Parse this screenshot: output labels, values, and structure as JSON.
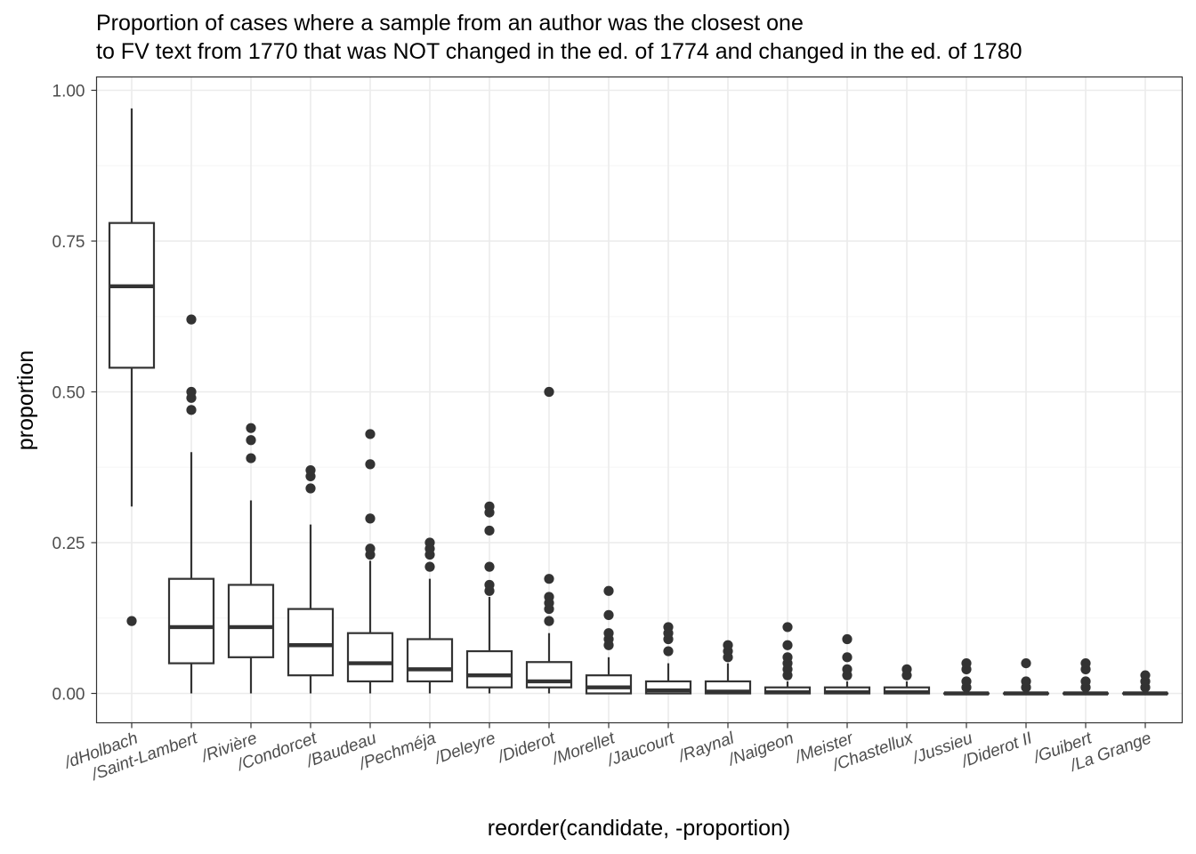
{
  "chart_data": {
    "type": "box",
    "title": [
      "Proportion of cases where a sample from an author was the closest one",
      "to FV text from 1770 that was NOT changed in the ed. of 1774 and changed in the ed. of 1780"
    ],
    "xlabel": "reorder(candidate, -proportion)",
    "ylabel": "proportion",
    "ylim": [
      -0.048,
      1.025
    ],
    "yticks": [
      0.0,
      0.25,
      0.5,
      0.75,
      1.0
    ],
    "ytick_labels": [
      "0.00",
      "0.25",
      "0.50",
      "0.75",
      "1.00"
    ],
    "grid": true,
    "categories": [
      "/dHolbach",
      "/Saint-Lambert",
      "/Rivière",
      "/Condorcet",
      "/Baudeau",
      "/Pechméja",
      "/Deleyre",
      "/Diderot",
      "/Morellet",
      "/Jaucourt",
      "/Raynal",
      "/Naigeon",
      "/Meister",
      "/Chastellux",
      "/Jussieu",
      "/Diderot II",
      "/Guibert",
      "/La Grange"
    ],
    "boxes": [
      {
        "whisker_low": 0.31,
        "q1": 0.54,
        "median": 0.675,
        "q3": 0.78,
        "whisker_high": 0.97,
        "outliers": [
          0.12
        ]
      },
      {
        "whisker_low": 0.0,
        "q1": 0.05,
        "median": 0.11,
        "q3": 0.19,
        "whisker_high": 0.4,
        "outliers": [
          0.47,
          0.49,
          0.5,
          0.62
        ]
      },
      {
        "whisker_low": 0.0,
        "q1": 0.06,
        "median": 0.11,
        "q3": 0.18,
        "whisker_high": 0.32,
        "outliers": [
          0.39,
          0.42,
          0.44
        ]
      },
      {
        "whisker_low": 0.0,
        "q1": 0.03,
        "median": 0.08,
        "q3": 0.14,
        "whisker_high": 0.28,
        "outliers": [
          0.34,
          0.36,
          0.37
        ]
      },
      {
        "whisker_low": 0.0,
        "q1": 0.02,
        "median": 0.05,
        "q3": 0.1,
        "whisker_high": 0.22,
        "outliers": [
          0.23,
          0.24,
          0.29,
          0.38,
          0.43
        ]
      },
      {
        "whisker_low": 0.0,
        "q1": 0.02,
        "median": 0.04,
        "q3": 0.09,
        "whisker_high": 0.19,
        "outliers": [
          0.21,
          0.23,
          0.24,
          0.25
        ]
      },
      {
        "whisker_low": 0.0,
        "q1": 0.01,
        "median": 0.03,
        "q3": 0.07,
        "whisker_high": 0.16,
        "outliers": [
          0.17,
          0.18,
          0.21,
          0.27,
          0.3,
          0.31
        ]
      },
      {
        "whisker_low": 0.0,
        "q1": 0.01,
        "median": 0.02,
        "q3": 0.052,
        "whisker_high": 0.1,
        "outliers": [
          0.12,
          0.14,
          0.15,
          0.16,
          0.19,
          0.5
        ]
      },
      {
        "whisker_low": 0.0,
        "q1": 0.0,
        "median": 0.01,
        "q3": 0.03,
        "whisker_high": 0.06,
        "outliers": [
          0.08,
          0.09,
          0.1,
          0.13,
          0.17
        ]
      },
      {
        "whisker_low": 0.0,
        "q1": 0.0,
        "median": 0.005,
        "q3": 0.02,
        "whisker_high": 0.05,
        "outliers": [
          0.07,
          0.09,
          0.1,
          0.11
        ]
      },
      {
        "whisker_low": 0.0,
        "q1": 0.0,
        "median": 0.003,
        "q3": 0.02,
        "whisker_high": 0.05,
        "outliers": [
          0.06,
          0.07,
          0.08
        ]
      },
      {
        "whisker_low": 0.0,
        "q1": 0.0,
        "median": 0.002,
        "q3": 0.01,
        "whisker_high": 0.02,
        "outliers": [
          0.03,
          0.04,
          0.05,
          0.06,
          0.08,
          0.11
        ]
      },
      {
        "whisker_low": 0.0,
        "q1": 0.0,
        "median": 0.002,
        "q3": 0.01,
        "whisker_high": 0.02,
        "outliers": [
          0.03,
          0.04,
          0.06,
          0.09
        ]
      },
      {
        "whisker_low": 0.0,
        "q1": 0.0,
        "median": 0.002,
        "q3": 0.01,
        "whisker_high": 0.02,
        "outliers": [
          0.03,
          0.04
        ]
      },
      {
        "whisker_low": 0.0,
        "q1": 0.0,
        "median": 0.0,
        "q3": 0.0,
        "whisker_high": 0.0,
        "outliers": [
          0.01,
          0.02,
          0.04,
          0.05
        ]
      },
      {
        "whisker_low": 0.0,
        "q1": 0.0,
        "median": 0.0,
        "q3": 0.0,
        "whisker_high": 0.0,
        "outliers": [
          0.01,
          0.02,
          0.05
        ]
      },
      {
        "whisker_low": 0.0,
        "q1": 0.0,
        "median": 0.0,
        "q3": 0.0,
        "whisker_high": 0.0,
        "outliers": [
          0.01,
          0.02,
          0.04,
          0.05
        ]
      },
      {
        "whisker_low": 0.0,
        "q1": 0.0,
        "median": 0.0,
        "q3": 0.0,
        "whisker_high": 0.0,
        "outliers": [
          0.01,
          0.02,
          0.03
        ]
      }
    ],
    "colors": {
      "panel_border": "#333333",
      "grid_major": "#ebebeb",
      "grid_minor": "#f5f5f5",
      "box": "#333333",
      "tick_text": "#4d4d4d"
    }
  }
}
